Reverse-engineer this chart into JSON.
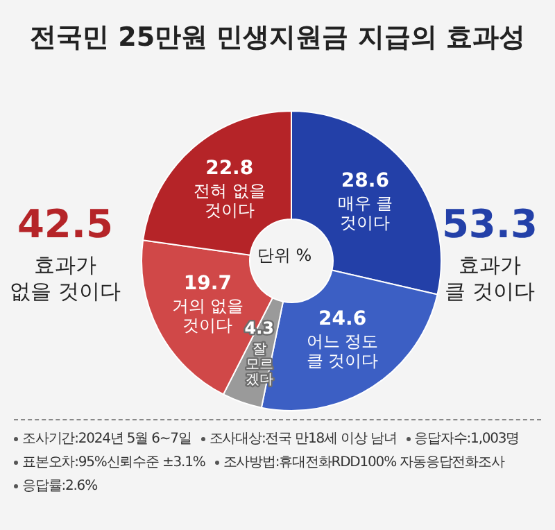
{
  "chart_data": {
    "type": "donut",
    "title": "전국민 25만원 민생지원금 지급의 효과성",
    "categories": [
      "매우 클 것이다",
      "어느 정도 클 것이다",
      "잘 모르겠다",
      "거의 없을 것이다",
      "전혀 없을 것이다"
    ],
    "values": [
      28.6,
      24.6,
      4.3,
      19.7,
      22.8
    ],
    "colors": [
      "#2340a8",
      "#3c5fc4",
      "#9a9a9a",
      "#d04848",
      "#b52428"
    ],
    "data_labels": true,
    "annotations": [
      "단위 %",
      "42.5 효과가 없을 것이다",
      "53.3 효과가 클 것이다",
      "조사기간:2024년 5월 6~7일",
      "조사대상:전국 만18세 이상 남녀",
      "응답자수:1,003명",
      "표본오차:95%신뢰수준 ±3.1%",
      "조사방법:휴대전화RDD100% 자동응답전화조사",
      "응답률:2.6%"
    ]
  }
}
